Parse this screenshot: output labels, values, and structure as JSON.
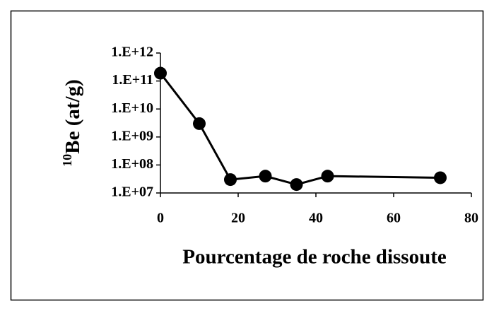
{
  "chart_data": {
    "type": "line",
    "x_label": "Pourcentage de roche dissoute",
    "y_label": {
      "superscript": "10",
      "text": "Be (at/g)"
    },
    "x": [
      0,
      10,
      18,
      27,
      35,
      43,
      72
    ],
    "series": [
      {
        "color": "#000000",
        "values": [
          190000000000,
          3000000000,
          30000000,
          40000000,
          20000000,
          40000000,
          35000000
        ]
      }
    ],
    "xlim": [
      0,
      80
    ],
    "xticks": [
      0,
      20,
      40,
      60,
      80
    ],
    "ylim": [
      10000000,
      1000000000000
    ],
    "ylog": true,
    "yticks": [
      {
        "value": 10000000,
        "label": "1.E+07"
      },
      {
        "value": 100000000,
        "label": "1.E+08"
      },
      {
        "value": 1000000000,
        "label": "1.E+09"
      },
      {
        "value": 10000000000,
        "label": "1.E+10"
      },
      {
        "value": 100000000000,
        "label": "1.E+11"
      },
      {
        "value": 1000000000000,
        "label": "1.E+12"
      }
    ]
  }
}
